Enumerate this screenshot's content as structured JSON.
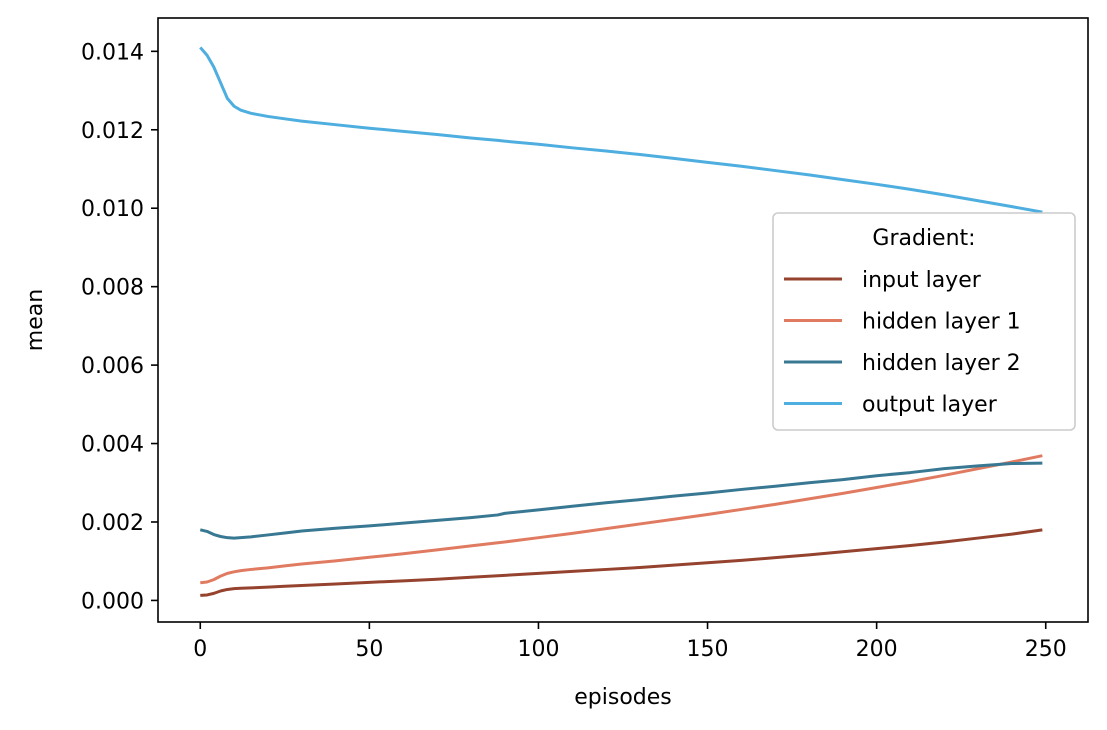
{
  "chart_data": {
    "type": "line",
    "title": "",
    "xlabel": "episodes",
    "ylabel": "mean",
    "xlim": [
      -12.5,
      262.5
    ],
    "ylim": [
      -0.00055,
      0.01485
    ],
    "xticks": [
      0,
      50,
      100,
      150,
      200,
      250
    ],
    "xtick_labels": [
      "0",
      "50",
      "100",
      "150",
      "200",
      "250"
    ],
    "yticks": [
      0.0,
      0.002,
      0.004,
      0.006,
      0.008,
      0.01,
      0.012,
      0.014
    ],
    "ytick_labels": [
      "0.000",
      "0.002",
      "0.004",
      "0.006",
      "0.008",
      "0.010",
      "0.012",
      "0.014"
    ],
    "grid": false,
    "legend": {
      "title": "Gradient:",
      "placement": "center-right"
    },
    "x": [
      0,
      2,
      4,
      6,
      8,
      10,
      12,
      15,
      20,
      25,
      30,
      40,
      50,
      60,
      70,
      80,
      88,
      90,
      100,
      110,
      120,
      130,
      140,
      150,
      160,
      170,
      180,
      190,
      200,
      210,
      220,
      230,
      240,
      249
    ],
    "series": [
      {
        "name": "input layer",
        "color": "#95432e",
        "values": [
          0.00013,
          0.00014,
          0.00018,
          0.00024,
          0.00028,
          0.0003,
          0.00031,
          0.00032,
          0.00034,
          0.00036,
          0.00038,
          0.00042,
          0.00046,
          0.0005,
          0.00054,
          0.00059,
          0.00063,
          0.00064,
          0.00069,
          0.00074,
          0.00079,
          0.00084,
          0.0009,
          0.00096,
          0.00102,
          0.00109,
          0.00116,
          0.00124,
          0.00132,
          0.0014,
          0.00149,
          0.00159,
          0.00169,
          0.0018
        ]
      },
      {
        "name": "hidden layer 1",
        "color": "#e07b61",
        "values": [
          0.00045,
          0.00047,
          0.00053,
          0.00062,
          0.00069,
          0.00073,
          0.00076,
          0.00079,
          0.00083,
          0.00088,
          0.00093,
          0.00101,
          0.0011,
          0.00119,
          0.00129,
          0.00139,
          0.00147,
          0.00149,
          0.0016,
          0.00171,
          0.00183,
          0.00195,
          0.00207,
          0.00219,
          0.00232,
          0.00245,
          0.00259,
          0.00273,
          0.00288,
          0.00303,
          0.00319,
          0.00336,
          0.00353,
          0.00369
        ]
      },
      {
        "name": "hidden layer 2",
        "color": "#387893",
        "values": [
          0.0018,
          0.00176,
          0.00168,
          0.00163,
          0.0016,
          0.00159,
          0.0016,
          0.00162,
          0.00167,
          0.00172,
          0.00177,
          0.00184,
          0.0019,
          0.00197,
          0.00204,
          0.00211,
          0.00218,
          0.00222,
          0.00231,
          0.0024,
          0.00249,
          0.00257,
          0.00266,
          0.00274,
          0.00283,
          0.00291,
          0.003,
          0.00308,
          0.00318,
          0.00326,
          0.00336,
          0.00343,
          0.00349,
          0.0035
        ]
      },
      {
        "name": "output layer",
        "color": "#4eaedf",
        "values": [
          0.0141,
          0.0139,
          0.0136,
          0.0132,
          0.0128,
          0.0126,
          0.0125,
          0.01242,
          0.01234,
          0.01228,
          0.01222,
          0.01213,
          0.01204,
          0.01196,
          0.01188,
          0.01179,
          0.01173,
          0.01171,
          0.01163,
          0.01154,
          0.01146,
          0.01137,
          0.01127,
          0.01117,
          0.01107,
          0.01096,
          0.01085,
          0.01073,
          0.01061,
          0.01048,
          0.01034,
          0.01019,
          0.01004,
          0.0099
        ]
      }
    ]
  }
}
